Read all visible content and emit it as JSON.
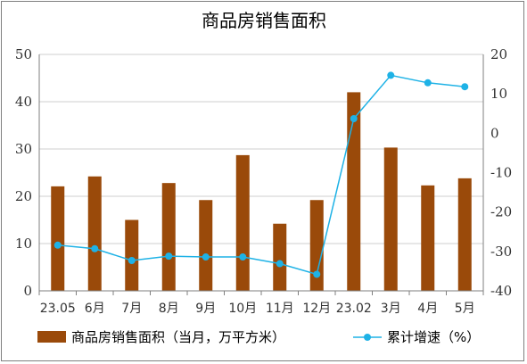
{
  "chart_data": {
    "type": "bar",
    "title": "商品房销售面积",
    "categories": [
      "23.05",
      "6月",
      "7月",
      "8月",
      "9月",
      "10月",
      "11月",
      "12月",
      "23.02",
      "3月",
      "4月",
      "5月"
    ],
    "left_axis": {
      "ylim": [
        0,
        50
      ],
      "ticks": [
        "0",
        "10",
        "20",
        "30",
        "40",
        "50"
      ]
    },
    "right_axis": {
      "ylim": [
        -40,
        20
      ],
      "ticks": [
        "-40",
        "-30",
        "-20",
        "-10",
        "0",
        "10",
        "20"
      ]
    },
    "grid": "horizontal",
    "legend_position": "bottom",
    "series": [
      {
        "name": "商品房销售面积（当月，万平方米）",
        "type": "bar",
        "axis": "left",
        "color": "#9a4a0a",
        "values": [
          22.1,
          24.2,
          15.0,
          22.8,
          19.2,
          28.7,
          14.2,
          19.2,
          42.0,
          30.3,
          22.3,
          23.8
        ]
      },
      {
        "name": "累计增速（%）",
        "type": "line",
        "axis": "right",
        "color": "#1eb2e6",
        "values": [
          -28.4,
          -29.3,
          -32.3,
          -31.2,
          -31.4,
          -31.4,
          -33.1,
          -35.8,
          3.7,
          14.7,
          12.8,
          11.8
        ]
      }
    ]
  }
}
